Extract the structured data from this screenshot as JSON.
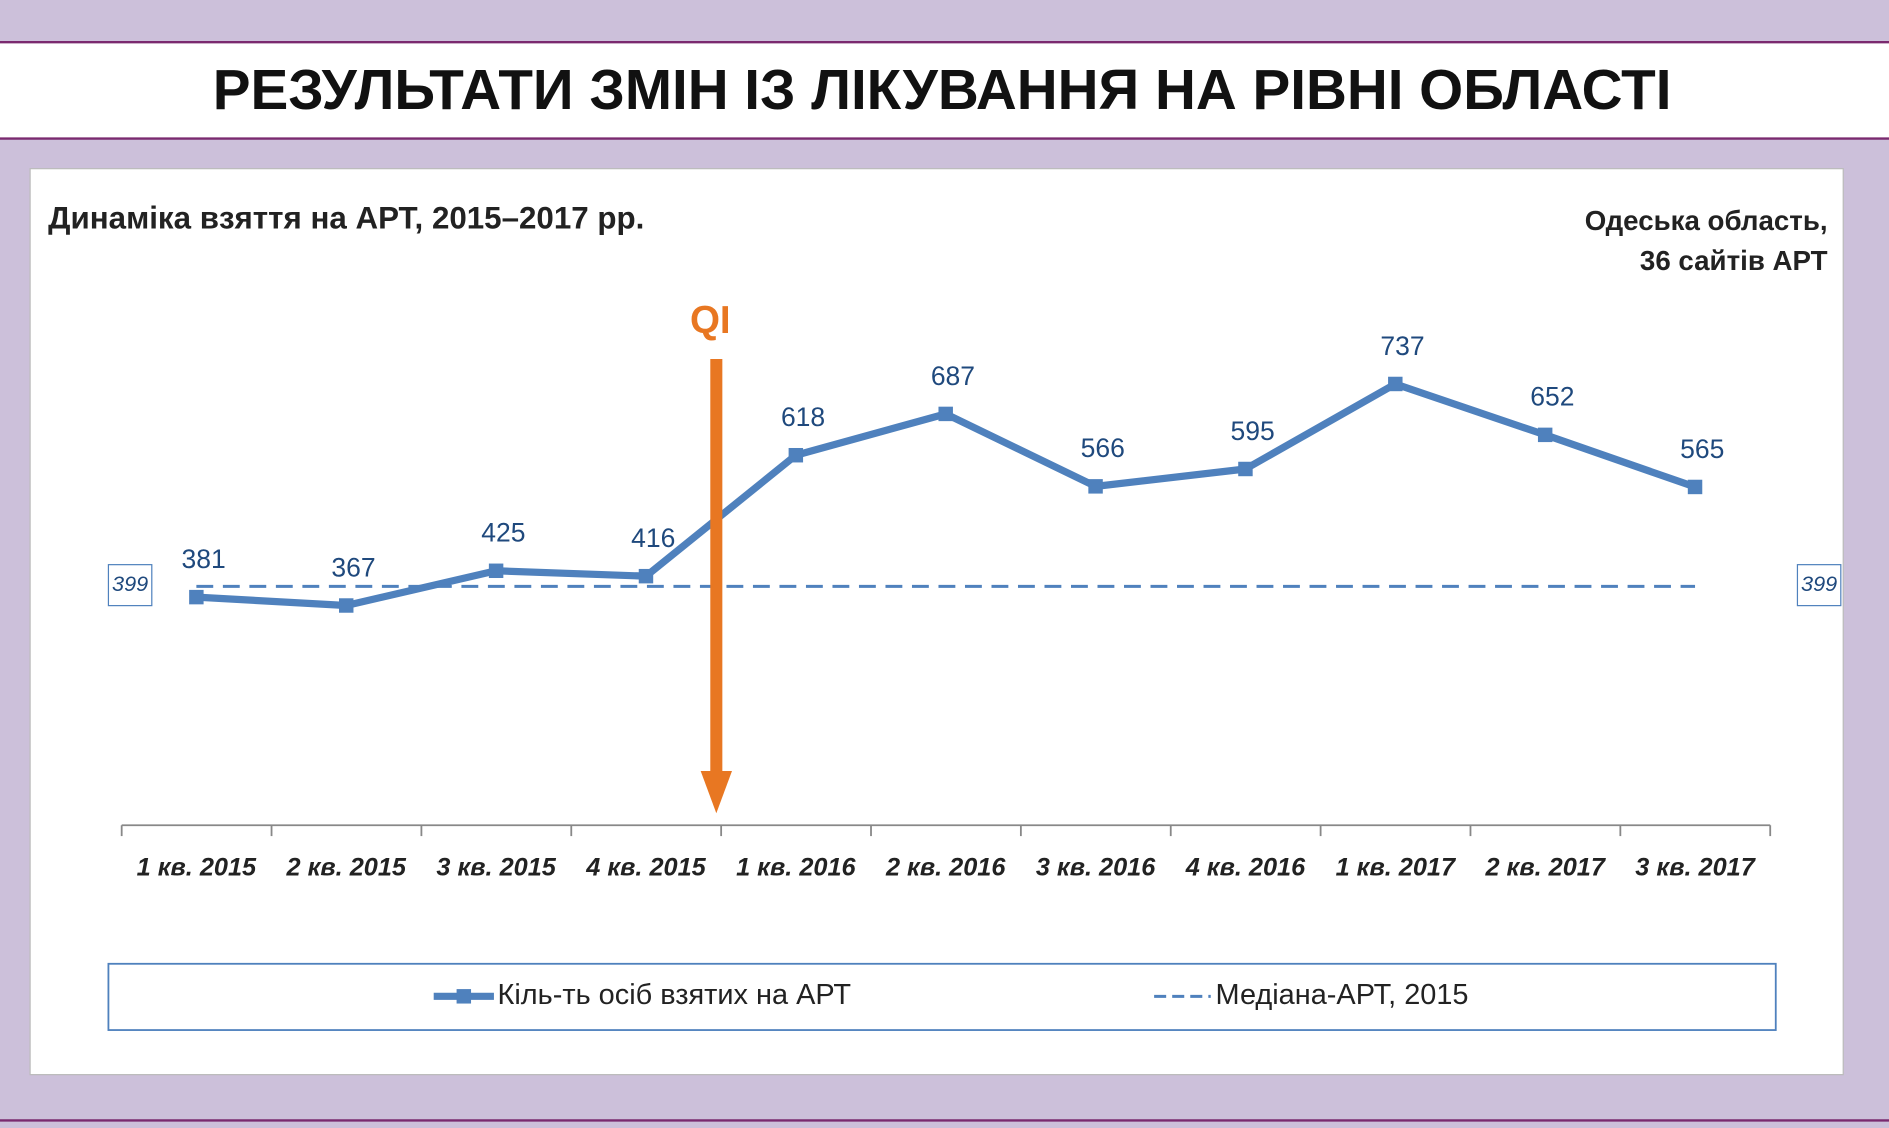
{
  "page_title": "РЕЗУЛЬТАТИ ЗМІН ІЗ ЛІКУВАННЯ НА РІВНІ ОБЛАСТІ",
  "chart_data": {
    "type": "line",
    "title": "Динаміка взяття на АРТ, 2015–2017 рр.",
    "subtitle": [
      "Одеська область,",
      "36 сайтів АРТ"
    ],
    "annotation": "QI",
    "categories": [
      "1 кв. 2015",
      "2 кв. 2015",
      "3 кв. 2015",
      "4 кв. 2015",
      "1 кв. 2016",
      "2 кв. 2016",
      "3 кв. 2016",
      "4 кв. 2016",
      "1 кв. 2017",
      "2 кв. 2017",
      "3 кв. 2017"
    ],
    "series": [
      {
        "name": "Кіль-ть осіб взятих на АРТ",
        "color": "#4f81bd",
        "values": [
          381,
          367,
          425,
          416,
          618,
          687,
          566,
          595,
          737,
          652,
          565
        ]
      },
      {
        "name": "Медіана-АРТ, 2015",
        "color": "#4f81bd",
        "dashed": true,
        "values": [
          399,
          399,
          399,
          399,
          399,
          399,
          399,
          399,
          399,
          399,
          399
        ]
      }
    ],
    "ylim": [
      0,
      1000
    ],
    "legend": "bottom"
  }
}
